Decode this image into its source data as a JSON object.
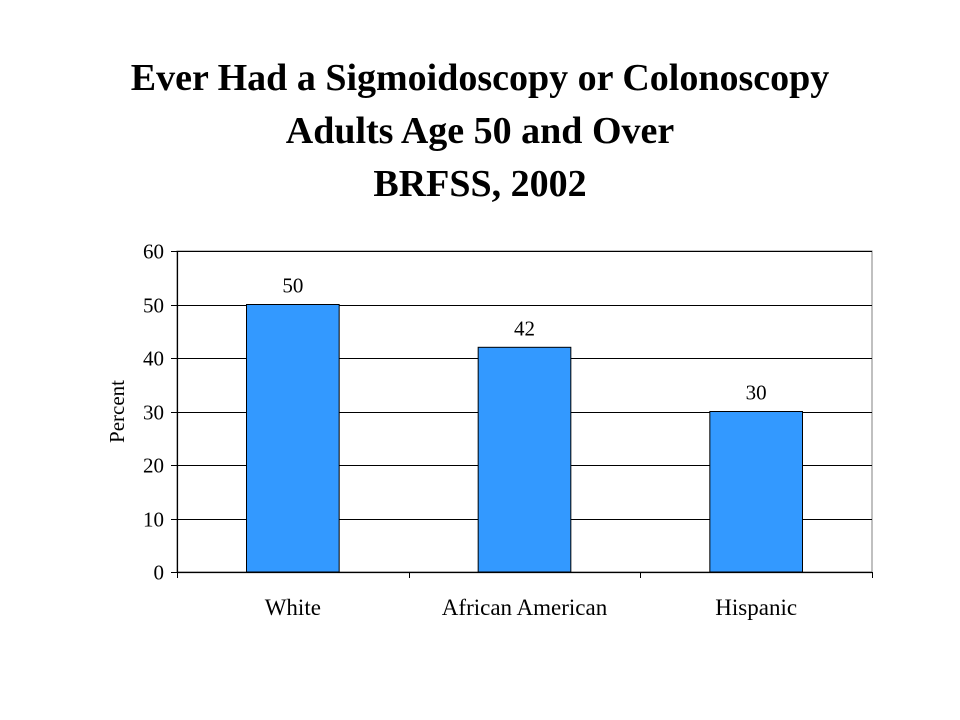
{
  "chart_data": {
    "type": "bar",
    "title": [
      "Ever Had a Sigmoidoscopy or Colonoscopy",
      "Adults Age 50 and Over",
      "BRFSS, 2002"
    ],
    "categories": [
      "White",
      "African American",
      "Hispanic"
    ],
    "values": [
      50,
      42,
      30
    ],
    "data_labels": [
      "50",
      "42",
      "30"
    ],
    "xlabel": "",
    "ylabel": "Percent",
    "ylim": [
      0,
      60
    ],
    "yticks": [
      0,
      10,
      20,
      30,
      40,
      50,
      60
    ],
    "grid": "horizontal",
    "legend": "none",
    "bar_color": "#3399FF",
    "gridline_color": "#000000"
  }
}
